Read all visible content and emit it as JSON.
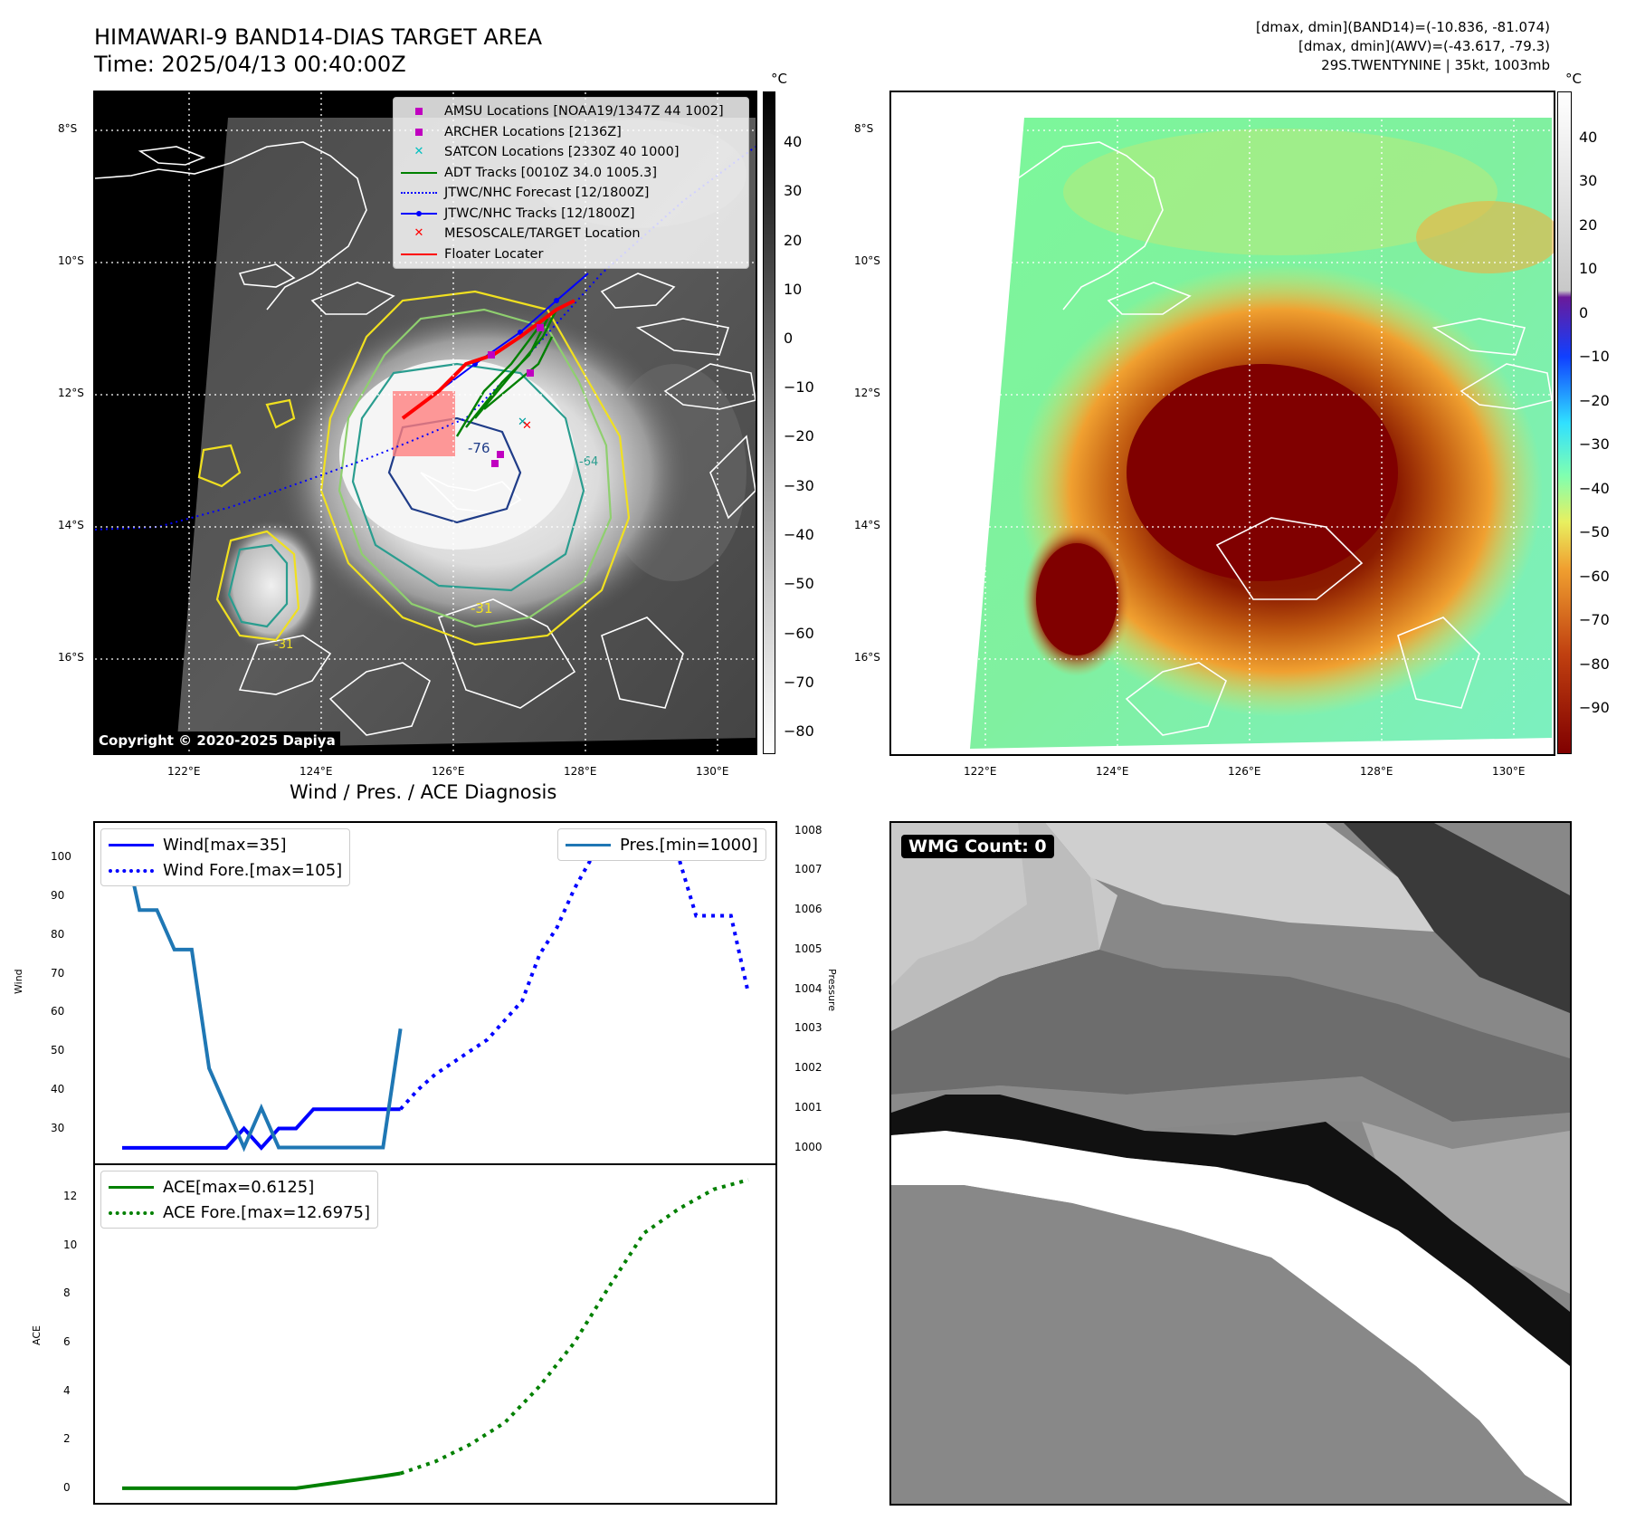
{
  "header": {
    "title_line1": "HIMAWARI-9 BAND14-DIAS TARGET AREA",
    "title_line2": "Time: 2025/04/13 00:40:00Z",
    "stats_line1": "[dmax, dmin](BAND14)=(-10.836, -81.074)",
    "stats_line2": "[dmax, dmin](AWV)=(-43.617, -79.3)",
    "stats_line3": "29S.TWENTYNINE | 35kt, 1003mb"
  },
  "map_axes": {
    "lat_labels": [
      "8°S",
      "10°S",
      "12°S",
      "14°S",
      "16°S"
    ],
    "lon_labels": [
      "122°E",
      "124°E",
      "126°E",
      "128°E",
      "130°E"
    ]
  },
  "colorbar_left": {
    "unit": "°C",
    "labels": [
      "40",
      "30",
      "20",
      "10",
      "0",
      "−10",
      "−20",
      "−30",
      "−40",
      "−50",
      "−60",
      "−70",
      "−80"
    ]
  },
  "colorbar_right": {
    "unit": "°C",
    "labels": [
      "40",
      "30",
      "20",
      "10",
      "0",
      "−10",
      "−20",
      "−30",
      "−40",
      "−50",
      "−60",
      "−70",
      "−80",
      "−90"
    ]
  },
  "map_legend": {
    "items": [
      {
        "label": "AMSU Locations [NOAA19/1347Z 44 1002]",
        "color": "#c000c0",
        "symbol": "square"
      },
      {
        "label": "ARCHER Locations [2136Z]",
        "color": "#c000c0",
        "symbol": "square"
      },
      {
        "label": "SATCON Locations [2330Z 40 1000]",
        "color": "#00c0c0",
        "symbol": "x"
      },
      {
        "label": "ADT Tracks [0010Z 34.0 1005.3]",
        "color": "#008000",
        "symbol": "line"
      },
      {
        "label": "JTWC/NHC Forecast [12/1800Z]",
        "color": "#0000ff",
        "symbol": "dotted"
      },
      {
        "label": "JTWC/NHC Tracks [12/1800Z]",
        "color": "#0000ff",
        "symbol": "line-dot"
      },
      {
        "label": "MESOSCALE/TARGET Location",
        "color": "#ff0000",
        "symbol": "x"
      },
      {
        "label": "Floater Locater",
        "color": "#ff0000",
        "symbol": "line"
      }
    ]
  },
  "contour_labels": [
    "-76",
    "-31",
    "-31",
    "-64"
  ],
  "copyright": "Copyright © 2020-2025 Dapiya",
  "wmg_label": "WMG Count: 0",
  "diagnosis_title": "Wind / Pres. / ACE Diagnosis",
  "wind_panel": {
    "ylabel_left": "Wind",
    "ylabel_right": "Pressure",
    "left_ticks": [
      "100",
      "90",
      "80",
      "70",
      "60",
      "50",
      "40",
      "30"
    ],
    "right_ticks": [
      "1008",
      "1007",
      "1006",
      "1005",
      "1004",
      "1003",
      "1002",
      "1001",
      "1000"
    ],
    "legend_wind": "Wind[max=35]",
    "legend_wind_fore": "Wind Fore.[max=105]",
    "legend_pres": "Pres.[min=1000]"
  },
  "ace_panel": {
    "ylabel": "ACE",
    "ticks": [
      "12",
      "10",
      "8",
      "6",
      "4",
      "2",
      "0"
    ],
    "legend_ace": "ACE[max=0.6125]",
    "legend_ace_fore": "ACE Fore.[max=12.6975]"
  },
  "colors": {
    "wind": "#0000ff",
    "pressure": "#1f77b4",
    "ace": "#008000",
    "floater": "#ff0000",
    "adt": "#008000"
  },
  "chart_data": [
    {
      "type": "line",
      "title": "Wind / Pres. / ACE Diagnosis",
      "ylabel": "Wind",
      "ylim": [
        21,
        109
      ],
      "x": [
        0,
        1,
        2,
        3,
        4,
        5,
        6,
        7,
        8,
        9,
        10,
        11,
        12,
        13,
        14,
        15,
        16
      ],
      "series": [
        {
          "name": "Wind[max=35]",
          "axis": "left",
          "style": "solid",
          "x": [
            0,
            1,
            2,
            3,
            4,
            5,
            6,
            7,
            8,
            9,
            10,
            11,
            12,
            13,
            14,
            15,
            16
          ],
          "values": [
            25,
            25,
            25,
            25,
            25,
            25,
            25,
            30,
            25,
            30,
            30,
            35,
            35,
            35,
            35,
            35,
            35
          ]
        }
      ]
    },
    {
      "type": "line",
      "ylabel": "Wind",
      "ylim": [
        21,
        109
      ],
      "series": [
        {
          "name": "Wind Fore.[max=105]",
          "axis": "left",
          "style": "dotted",
          "x": [
            16,
            17,
            18,
            19,
            20,
            21,
            22,
            23,
            24,
            25,
            26,
            27,
            28,
            29,
            30,
            31,
            32,
            33,
            34,
            35,
            36
          ],
          "values": [
            35,
            40,
            44,
            47,
            50,
            53,
            58,
            63,
            75,
            82,
            92,
            100,
            103,
            105,
            105,
            104,
            100,
            85,
            85,
            85,
            65
          ]
        }
      ]
    },
    {
      "type": "line",
      "ylabel": "Pressure",
      "ylim": [
        999.6,
        1008.2
      ],
      "series": [
        {
          "name": "Pres.[min=1000]",
          "axis": "right",
          "style": "solid",
          "x": [
            0,
            1,
            2,
            3,
            4,
            5,
            6,
            7,
            8,
            9,
            10,
            11,
            12,
            13,
            14,
            15,
            16
          ],
          "values": [
            1008,
            1006,
            1006,
            1005,
            1005,
            1002,
            1001,
            1000,
            1001,
            1000,
            1000,
            1000,
            1000,
            1000,
            1000,
            1000,
            1003
          ]
        }
      ]
    },
    {
      "type": "line",
      "ylabel": "ACE",
      "ylim": [
        -0.6,
        13.3
      ],
      "series": [
        {
          "name": "ACE[max=0.6125]",
          "style": "solid",
          "x": [
            0,
            1,
            2,
            3,
            4,
            5,
            6,
            7,
            8,
            9,
            10,
            11,
            12,
            13,
            14,
            15,
            16
          ],
          "values": [
            0,
            0,
            0,
            0,
            0,
            0,
            0,
            0,
            0,
            0,
            0,
            0.1,
            0.2,
            0.3,
            0.4,
            0.5,
            0.6125
          ]
        },
        {
          "name": "ACE Fore.[max=12.6975]",
          "style": "dotted",
          "x": [
            16,
            18,
            20,
            22,
            24,
            26,
            28,
            30,
            32,
            34,
            36
          ],
          "values": [
            0.6125,
            1.1,
            1.8,
            2.7,
            4.2,
            6.0,
            8.3,
            10.5,
            11.5,
            12.3,
            12.6975
          ]
        }
      ]
    }
  ]
}
